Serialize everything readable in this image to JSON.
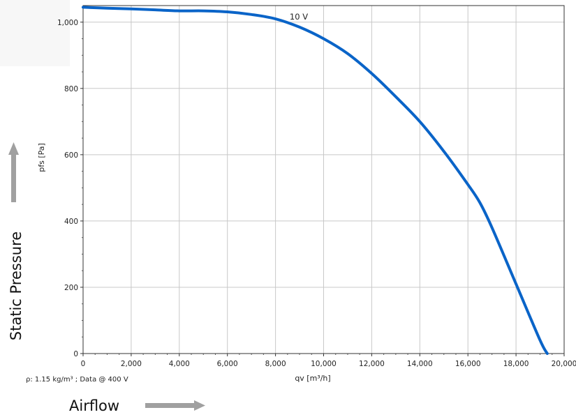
{
  "chart_data": {
    "type": "line",
    "xlabel": "qv [m³/h]",
    "ylabel": "pfs [Pa]",
    "xlim": [
      0,
      20000
    ],
    "ylim": [
      0,
      1050
    ],
    "xticks": [
      "0",
      "2,000",
      "4,000",
      "6,000",
      "8,000",
      "10,000",
      "12,000",
      "14,000",
      "16,000",
      "18,000",
      "20,000"
    ],
    "yticks": [
      "0",
      "200",
      "400",
      "600",
      "800",
      "1,000"
    ],
    "grid": true,
    "series": [
      {
        "name": "10 V",
        "color": "#0a64c8",
        "x": [
          0,
          1000,
          2000,
          3000,
          4000,
          5000,
          6000,
          7000,
          8000,
          9000,
          10000,
          11000,
          12000,
          13000,
          14000,
          15000,
          16000,
          16500,
          17000,
          18000,
          19000,
          19300
        ],
        "y": [
          1045,
          1042,
          1040,
          1037,
          1034,
          1034,
          1031,
          1023,
          1010,
          985,
          950,
          905,
          845,
          775,
          700,
          610,
          510,
          455,
          380,
          210,
          40,
          0
        ]
      }
    ],
    "footnote": "ρ: 1.15 kg/m³ ; Data @ 400 V"
  },
  "annotations": {
    "vertical_title": "Static Pressure",
    "horizontal_title": "Airflow",
    "arrow_color": "#a0a0a0"
  }
}
